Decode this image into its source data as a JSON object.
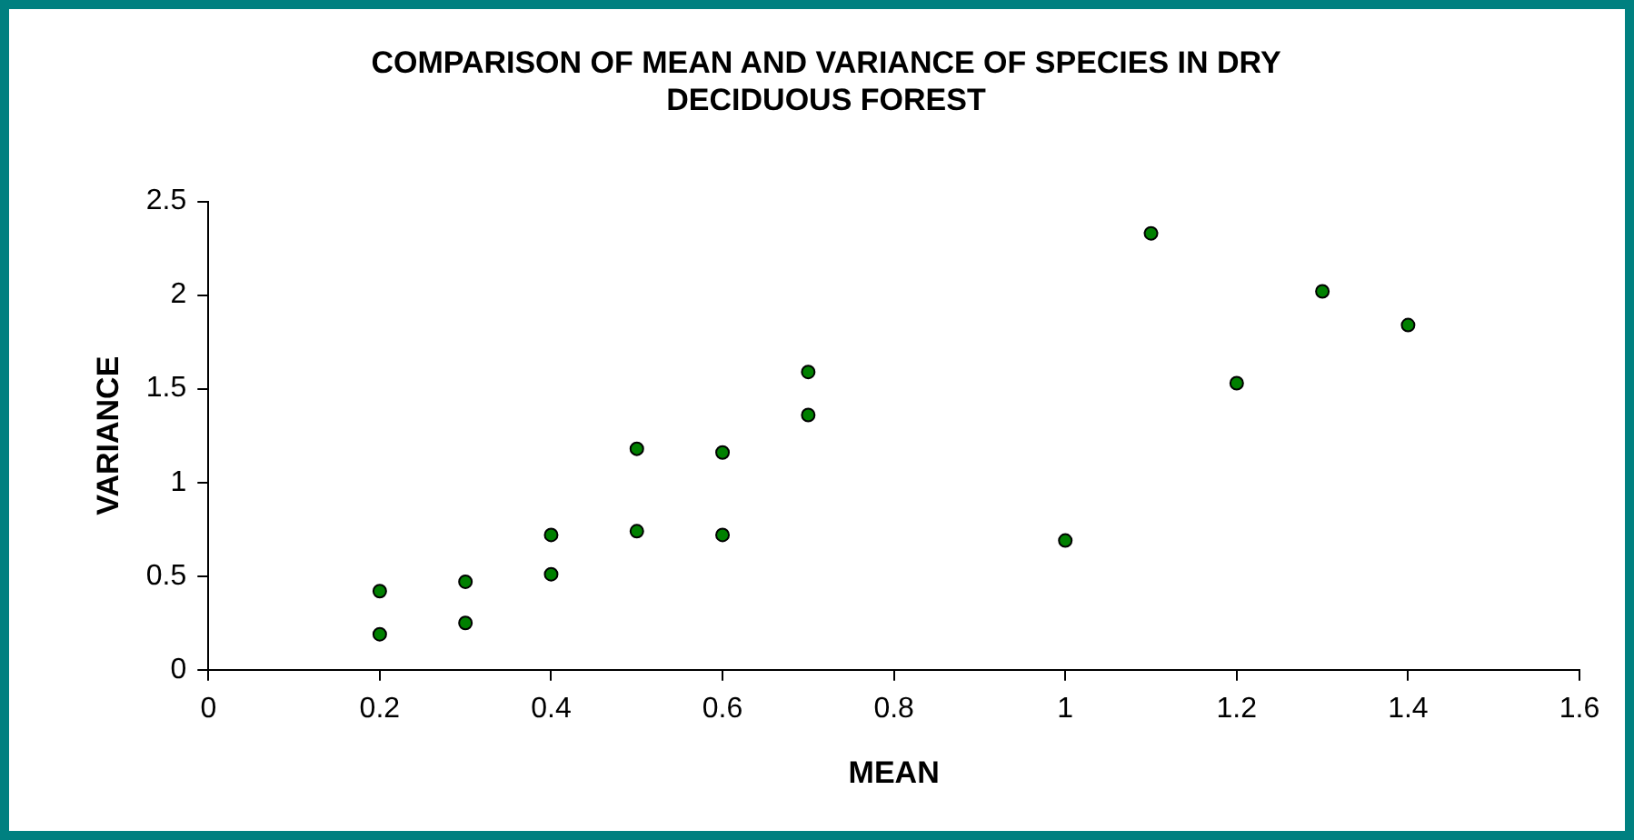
{
  "chart_data": {
    "type": "scatter",
    "title": "COMPARISON OF MEAN AND VARIANCE OF SPECIES IN DRY DECIDUOUS FOREST",
    "xlabel": "MEAN",
    "ylabel": "VARIANCE",
    "series": [
      {
        "color": "#008000",
        "x": [
          0.2,
          0.2,
          0.3,
          0.3,
          0.4,
          0.4,
          0.5,
          0.5,
          0.6,
          0.6,
          0.7,
          0.7,
          1.0,
          1.1,
          1.2,
          1.3,
          1.4
        ],
        "values": [
          0.42,
          0.19,
          0.47,
          0.25,
          0.72,
          0.51,
          1.18,
          0.74,
          1.16,
          0.72,
          1.59,
          1.36,
          0.69,
          2.33,
          1.53,
          2.02,
          1.84
        ]
      }
    ],
    "xlim": [
      0,
      1.6
    ],
    "xticks": [
      0,
      0.2,
      0.4,
      0.6,
      0.8,
      1,
      1.2,
      1.4,
      1.6
    ],
    "ylim": [
      0,
      2.5
    ],
    "yticks": [
      0,
      0.5,
      1,
      1.5,
      2,
      2.5
    ],
    "grid": false,
    "legend": false,
    "marker": "circle"
  }
}
